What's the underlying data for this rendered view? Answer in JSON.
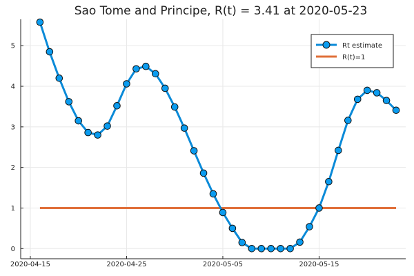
{
  "chart_data": {
    "type": "line",
    "title": "Sao Tome and Principe, R(t) = 3.41 at 2020-05-23",
    "xlabel": "",
    "ylabel": "",
    "x_ticks": [
      {
        "date": "2020-04-15",
        "label": "2020-04-15"
      },
      {
        "date": "2020-04-25",
        "label": "2020-04-25"
      },
      {
        "date": "2020-05-05",
        "label": "2020-05-05"
      },
      {
        "date": "2020-05-15",
        "label": "2020-05-15"
      }
    ],
    "y_ticks": [
      0,
      1,
      2,
      3,
      4,
      5
    ],
    "xlim": [
      "2020-04-14",
      "2020-05-24"
    ],
    "ylim": [
      -0.25,
      5.65
    ],
    "grid": true,
    "legend_position": "top-right",
    "colors": {
      "estimate": "#0a9cf0",
      "estimate_line": "#0a8ad8",
      "marker_edge": "#111111",
      "threshold": "#e0703a"
    },
    "series": [
      {
        "name": "Rt estimate",
        "kind": "line-markers",
        "x": [
          "2020-04-16",
          "2020-04-17",
          "2020-04-18",
          "2020-04-19",
          "2020-04-20",
          "2020-04-21",
          "2020-04-22",
          "2020-04-23",
          "2020-04-24",
          "2020-04-25",
          "2020-04-26",
          "2020-04-27",
          "2020-04-28",
          "2020-04-29",
          "2020-04-30",
          "2020-05-01",
          "2020-05-02",
          "2020-05-03",
          "2020-05-04",
          "2020-05-05",
          "2020-05-06",
          "2020-05-07",
          "2020-05-08",
          "2020-05-09",
          "2020-05-10",
          "2020-05-11",
          "2020-05-12",
          "2020-05-13",
          "2020-05-14",
          "2020-05-15",
          "2020-05-16",
          "2020-05-17",
          "2020-05-18",
          "2020-05-19",
          "2020-05-20",
          "2020-05-21",
          "2020-05-22",
          "2020-05-23"
        ],
        "values": [
          5.58,
          4.85,
          4.2,
          3.62,
          3.15,
          2.86,
          2.8,
          3.02,
          3.52,
          4.06,
          4.43,
          4.49,
          4.31,
          3.95,
          3.49,
          2.97,
          2.41,
          1.86,
          1.35,
          0.89,
          0.5,
          0.15,
          0.0,
          0.0,
          0.0,
          0.0,
          0.0,
          0.16,
          0.54,
          1.0,
          1.65,
          2.42,
          3.16,
          3.68,
          3.9,
          3.84,
          3.65,
          3.41
        ]
      },
      {
        "name": "R(t)=1",
        "kind": "line",
        "x": [
          "2020-04-16",
          "2020-05-23"
        ],
        "values": [
          1,
          1
        ]
      }
    ]
  }
}
